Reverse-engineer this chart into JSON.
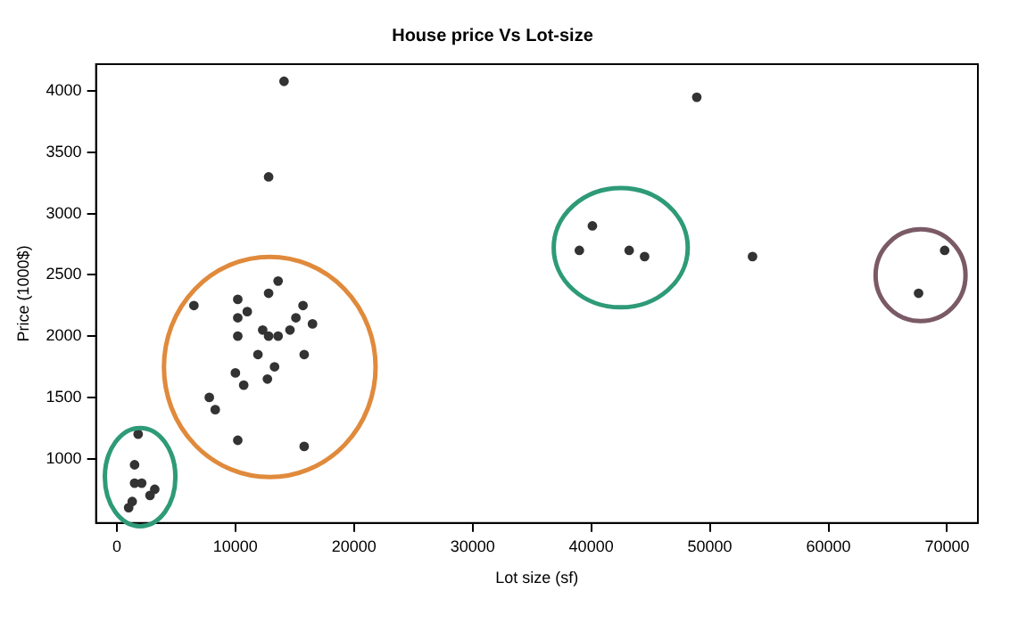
{
  "chart_data": {
    "type": "scatter",
    "title": "House price Vs Lot-size",
    "xlabel": "Lot size (sf)",
    "ylabel": "Price (1000$)",
    "xlim": [
      -1750,
      72600
    ],
    "xticks": [
      0,
      10000,
      20000,
      30000,
      40000,
      50000,
      60000,
      70000
    ],
    "ylim": [
      475,
      4220
    ],
    "yticks": [
      1000,
      1500,
      2000,
      2500,
      3000,
      3500,
      4000
    ],
    "grid": false,
    "legend": false,
    "marker": "circle",
    "series": [
      {
        "color": "#333333",
        "x": [
          14100,
          12800,
          13600,
          12800,
          10200,
          6500,
          11000,
          10200,
          15700,
          15100,
          16500,
          14600,
          12300,
          12800,
          13600,
          10200,
          15800,
          11900,
          13300,
          12700,
          10000,
          10700,
          7800,
          8300,
          10200,
          15800,
          1800,
          1500,
          1500,
          2100,
          3200,
          2800,
          1300,
          1000,
          48900,
          40100,
          39000,
          43200,
          44500,
          53600,
          69800,
          67600
        ],
        "values": [
          4080,
          3300,
          2450,
          2350,
          2300,
          2250,
          2200,
          2150,
          2250,
          2150,
          2100,
          2050,
          2050,
          2000,
          2000,
          2000,
          1850,
          1850,
          1750,
          1650,
          1700,
          1600,
          1500,
          1400,
          1150,
          1100,
          1200,
          950,
          800,
          800,
          750,
          700,
          650,
          600,
          3950,
          2900,
          2700,
          2700,
          2650,
          2650,
          2700,
          2350
        ]
      }
    ]
  }
}
